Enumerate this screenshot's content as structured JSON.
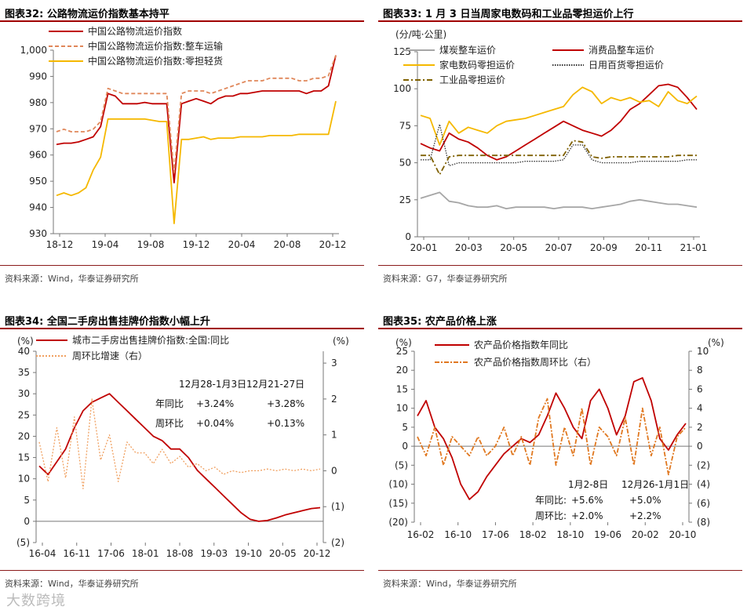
{
  "charts": [
    {
      "title": "图表32:  公路物流运价指数基本持平",
      "source": "资料来源：Wind，华泰证券研究所",
      "chart_data": {
        "type": "line",
        "title": "图表32:  公路物流运价指数基本持平",
        "x_ticks": [
          "18-12",
          "19-04",
          "19-08",
          "19-12",
          "20-04",
          "20-08",
          "20-12"
        ],
        "y_ticks": [
          "930",
          "940",
          "950",
          "960",
          "970",
          "980",
          "990",
          "1,000"
        ],
        "ylim": [
          930,
          1002
        ],
        "series": [
          {
            "name": "中国公路物流运价指数",
            "color": "#c00000",
            "dash": "",
            "values": [
              965,
              965.5,
              965.5,
              966,
              967,
              968,
              972,
              985,
              984,
              981,
              981,
              981,
              981.5,
              981,
              981,
              981,
              950,
              981,
              982,
              983,
              982,
              981,
              983,
              984,
              984,
              985,
              985,
              985.5,
              986,
              986,
              986,
              986,
              986,
              986,
              985,
              986,
              986,
              988,
              1000
            ]
          },
          {
            "name": "中国公路物流运价指数:整车运输",
            "color": "#e0875a",
            "dash": "5,3",
            "values": [
              970,
              971,
              970,
              970,
              970,
              971,
              974,
              987,
              986,
              985,
              985,
              985,
              985,
              985,
              985,
              985,
              954,
              985,
              986,
              986,
              986,
              985,
              986,
              987,
              988,
              989,
              990,
              990,
              990,
              991,
              991,
              991,
              991,
              990,
              990,
              991,
              991,
              992,
              1000
            ]
          },
          {
            "name": "中国公路物流运价指数:零担轻货",
            "color": "#f5b800",
            "dash": "",
            "values": [
              945,
              946,
              945,
              946,
              948,
              955,
              960,
              975,
              975,
              975,
              975,
              975,
              975,
              974.5,
              974,
              974,
              934,
              967,
              967,
              967.5,
              968,
              967,
              967.5,
              967.5,
              967.5,
              968,
              968,
              968,
              968,
              968.5,
              968.5,
              968.5,
              968.5,
              969,
              969,
              969,
              969,
              969,
              982
            ]
          }
        ]
      }
    },
    {
      "title": "图表33:  1 月 3 日当周家电数码和工业品零担运价上行",
      "source": "资料来源：G7，华泰证券研究所",
      "chart_data": {
        "type": "line",
        "title": "图表33:  1 月 3 日当周家电数码和工业品零担运价上行",
        "ylabel": "(分/吨·公里)",
        "x_ticks": [
          "20-01",
          "20-03",
          "20-05",
          "20-07",
          "20-09",
          "20-11",
          "21-01"
        ],
        "y_ticks": [
          "0",
          "25",
          "50",
          "75",
          "100",
          "125"
        ],
        "ylim": [
          0,
          125
        ],
        "series": [
          {
            "name": "煤炭整车运价",
            "color": "#a6a6a6",
            "dash": "",
            "values": [
              26,
              28,
              30,
              24,
              23,
              21,
              20,
              20,
              21,
              19,
              20,
              20,
              20,
              20,
              19,
              20,
              20,
              20,
              19,
              20,
              21,
              22,
              24,
              25,
              24,
              23,
              22,
              22,
              21,
              20
            ]
          },
          {
            "name": "消费品整车运价",
            "color": "#c00000",
            "dash": "",
            "values": [
              63,
              60,
              58,
              70,
              66,
              64,
              60,
              55,
              52,
              54,
              58,
              62,
              66,
              70,
              74,
              78,
              75,
              72,
              70,
              68,
              72,
              78,
              86,
              90,
              96,
              102,
              103,
              101,
              94,
              86
            ]
          },
          {
            "name": "家电数码零担运价",
            "color": "#f5b800",
            "dash": "",
            "values": [
              82,
              80,
              62,
              78,
              70,
              74,
              72,
              70,
              75,
              78,
              79,
              80,
              82,
              84,
              86,
              88,
              96,
              101,
              98,
              90,
              94,
              92,
              94,
              91,
              92,
              88,
              98,
              92,
              90,
              95
            ]
          },
          {
            "name": "日用百货零担运价",
            "color": "#333333",
            "dash": "1.5,1.5",
            "values": [
              52,
              52,
              76,
              48,
              50,
              50,
              50,
              50,
              50,
              50,
              50,
              51,
              51,
              51,
              51,
              52,
              62,
              62,
              52,
              50,
              50,
              50,
              50,
              51,
              51,
              51,
              51,
              51,
              52,
              52
            ]
          },
          {
            "name": "工业品零担运价",
            "color": "#7f6000",
            "dash": "7,3,2,3",
            "values": [
              55,
              55,
              42,
              54,
              55,
              55,
              55,
              55,
              55,
              55,
              55,
              55,
              55,
              55,
              55,
              55,
              65,
              64,
              54,
              53,
              54,
              54,
              54,
              54,
              54,
              54,
              54,
              55,
              55,
              55
            ]
          }
        ]
      }
    },
    {
      "title": "图表34:  全国二手房出售挂牌价指数小幅上升",
      "source": "资料来源：Wind，华泰证券研究所",
      "chart_data": {
        "type": "line",
        "title": "图表34:  全国二手房出售挂牌价指数小幅上升",
        "ylabel": "(%)",
        "ylabel_right": "(%)",
        "x_ticks": [
          "16-04",
          "16-11",
          "17-06",
          "18-01",
          "18-08",
          "19-03",
          "19-10",
          "20-05",
          "20-12"
        ],
        "y_ticks": [
          "(5)",
          "0",
          "5",
          "10",
          "15",
          "20",
          "25",
          "30",
          "35",
          "40"
        ],
        "ylim": [
          -5,
          40
        ],
        "y2_ticks": [
          "(2)",
          "(1)",
          "0",
          "1",
          "2",
          "3"
        ],
        "y2lim": [
          -2,
          3.33
        ],
        "annotation": {
          "period1": "12月28-1月3日",
          "period2": "12月21-27日",
          "row1_label": "年同比",
          "row1_v1": "+3.24%",
          "row1_v2": "+3.28%",
          "row2_label": "周环比",
          "row2_v1": "+0.04%",
          "row2_v2": "+0.13%"
        },
        "series": [
          {
            "name": "城市二手房出售挂牌价指数:全国:同比",
            "color": "#c00000",
            "axis": "left",
            "dash": "",
            "values": [
              13,
              11,
              14,
              17,
              22,
              26,
              28,
              29,
              30,
              28,
              26,
              24,
              22,
              20,
              19,
              17,
              17,
              15,
              12,
              10,
              8,
              6,
              4,
              2,
              0.5,
              0,
              0.2,
              0.8,
              1.5,
              2,
              2.5,
              3,
              3.2
            ]
          },
          {
            "name": "周环比增速（右）",
            "color": "#f0a060",
            "axis": "right",
            "dash": "2,2",
            "values": [
              0.8,
              -0.3,
              1.2,
              -0.2,
              1.5,
              -0.5,
              2.0,
              0.3,
              1.0,
              -0.3,
              0.8,
              0.5,
              0.5,
              0.2,
              0.6,
              0.2,
              0.4,
              0.1,
              0.2,
              0.0,
              0.1,
              -0.1,
              0.0,
              -0.05,
              0.0,
              0.0,
              0.05,
              0.0,
              0.05,
              0.0,
              0.05,
              0.0,
              0.05
            ]
          }
        ]
      }
    },
    {
      "title": "图表35:  农产品价格上涨",
      "source": "资料来源：Wind，华泰证券研究所",
      "chart_data": {
        "type": "line",
        "title": "图表35:  农产品价格上涨",
        "ylabel": "(%)",
        "ylabel_right": "(%)",
        "x_ticks": [
          "16-02",
          "16-10",
          "17-06",
          "18-02",
          "18-10",
          "19-06",
          "20-02",
          "20-10"
        ],
        "y_ticks": [
          "(20)",
          "(15)",
          "(10)",
          "(5)",
          "0",
          "5",
          "10",
          "15",
          "20",
          "25"
        ],
        "ylim": [
          -20,
          25
        ],
        "y2_ticks": [
          "(8)",
          "(6)",
          "(4)",
          "(2)",
          "0",
          "2",
          "4",
          "6",
          "8",
          "10"
        ],
        "y2lim": [
          -8,
          10
        ],
        "annotation": {
          "period1": "1月2-8日",
          "period2": "12月26-1月1日",
          "row1_label": "年同比:",
          "row1_v1": "+5.6%",
          "row1_v2": "+5.0%",
          "row2_label": "周环比:",
          "row2_v1": "+2.0%",
          "row2_v2": "+2.2%"
        },
        "series": [
          {
            "name": "农产品价格指数年同比",
            "color": "#c00000",
            "axis": "left",
            "dash": "",
            "values": [
              8,
              12,
              5,
              2,
              -3,
              -10,
              -14,
              -12,
              -8,
              -5,
              -2,
              0,
              2,
              1,
              3,
              8,
              14,
              10,
              5,
              2,
              12,
              15,
              10,
              3,
              8,
              17,
              18,
              12,
              2,
              -1,
              3,
              6
            ]
          },
          {
            "name": "农产品价格指数周环比（右）",
            "color": "#e07820",
            "axis": "right",
            "dash": "6,2,2,2",
            "values": [
              1,
              -1,
              2,
              -2,
              1,
              0,
              -1,
              1,
              -1,
              0,
              2,
              -1,
              1,
              -2,
              3,
              5,
              -2,
              2,
              -1,
              4,
              -2,
              2,
              1,
              -1,
              3,
              -2,
              4,
              -1,
              2,
              -3,
              1,
              2
            ]
          }
        ]
      }
    }
  ],
  "watermark": "大数跨境"
}
